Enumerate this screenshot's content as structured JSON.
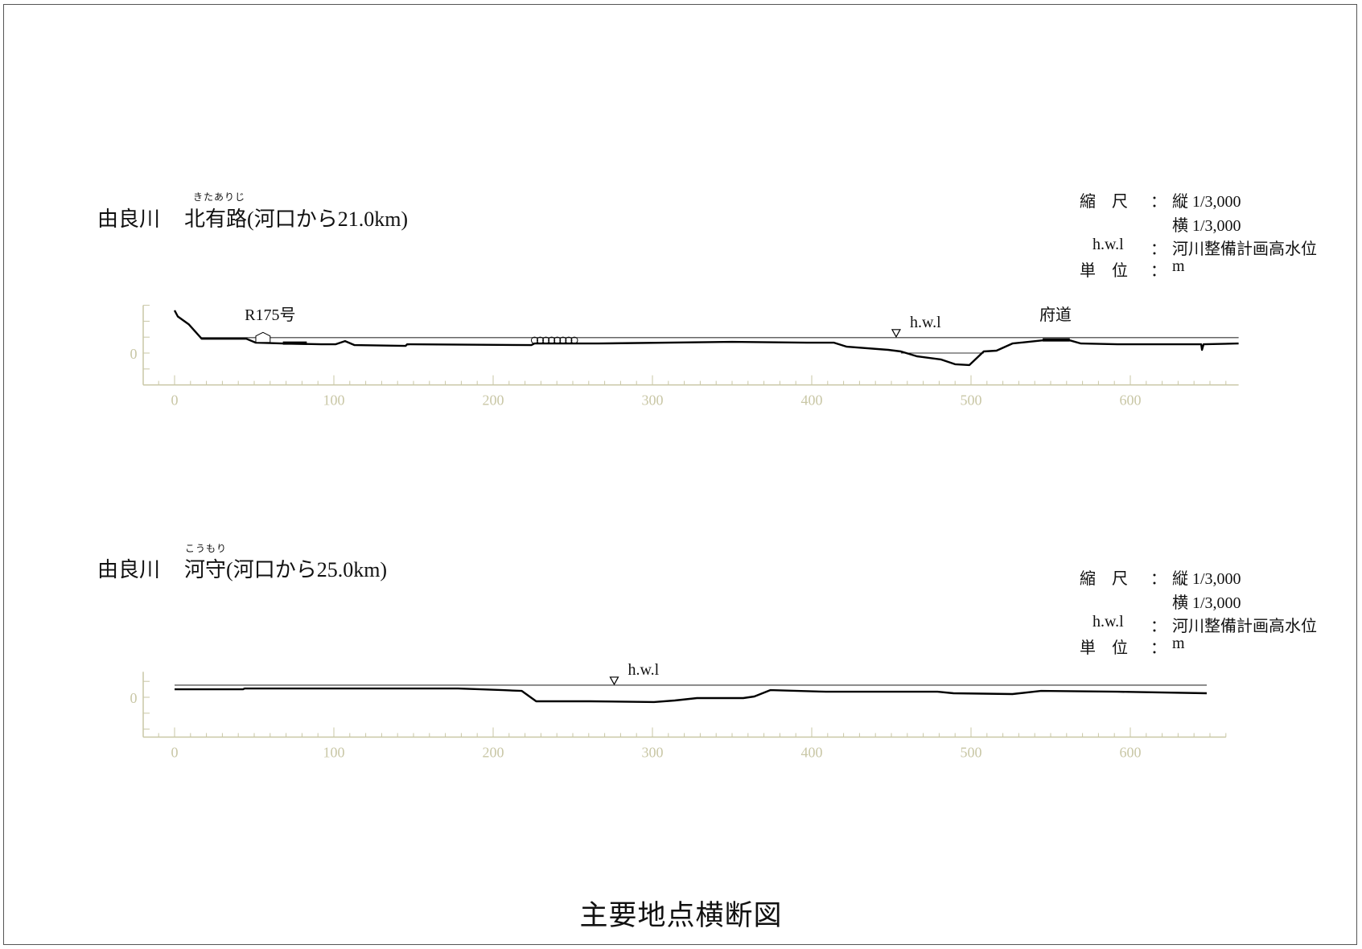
{
  "main_title": "主要地点横断図",
  "sections": [
    {
      "river": "由良川",
      "place": "北有路",
      "ruby": "きたありじ",
      "distance": "(河口から21.0km)",
      "legend": {
        "scale_label": "縮　尺",
        "sep": "：",
        "vertical": "縦 1/3,000",
        "horizontal": "横 1/3,000",
        "hwl_label": "h.w.l",
        "hwl_desc": "河川整備計画高水位",
        "unit_label": "単　位",
        "unit": "m"
      }
    },
    {
      "river": "由良川",
      "place": "河守",
      "ruby": "こうもり",
      "distance": "(河口から25.0km)",
      "legend": {
        "scale_label": "縮　尺",
        "sep": "：",
        "vertical": "縦 1/3,000",
        "horizontal": "横 1/3,000",
        "hwl_label": "h.w.l",
        "hwl_desc": "河川整備計画高水位",
        "unit_label": "単　位",
        "unit": "m"
      }
    }
  ],
  "colors": {
    "axis": "#c9c7a6",
    "profile": "#000000",
    "text": "#111111"
  },
  "chart_data": [
    {
      "type": "line",
      "xticks": [
        0,
        100,
        200,
        300,
        400,
        500,
        600
      ],
      "yticks_labeled": [
        0
      ],
      "xlim": [
        0,
        668
      ],
      "ylim": [
        -20,
        30
      ],
      "profile": [
        [
          0,
          26.8
        ],
        [
          2,
          23
        ],
        [
          9,
          18
        ],
        [
          17,
          9
        ],
        [
          45,
          9
        ],
        [
          51,
          6.5
        ],
        [
          68,
          6
        ],
        [
          92,
          5.5
        ],
        [
          101,
          5.5
        ],
        [
          107,
          7.5
        ],
        [
          113,
          5
        ],
        [
          145,
          4.5
        ],
        [
          146,
          5.5
        ],
        [
          224,
          5
        ],
        [
          226,
          6
        ],
        [
          266,
          6
        ],
        [
          350,
          7
        ],
        [
          397,
          6.5
        ],
        [
          414,
          6.5
        ],
        [
          422,
          4
        ],
        [
          448,
          2
        ],
        [
          456,
          1
        ],
        [
          466,
          -2
        ],
        [
          481,
          -4
        ],
        [
          490,
          -7
        ],
        [
          499,
          -7.5
        ],
        [
          508,
          1
        ],
        [
          516,
          1.5
        ],
        [
          526,
          6
        ],
        [
          545,
          8
        ],
        [
          562,
          8
        ],
        [
          569,
          6
        ],
        [
          592,
          5.5
        ],
        [
          607,
          5.5
        ],
        [
          644.5,
          5.5
        ],
        [
          645,
          2
        ],
        [
          646,
          5.5
        ],
        [
          668,
          6
        ]
      ],
      "hwl": {
        "elevation": 9.7,
        "from": 17,
        "to": 668,
        "marker_x": 453,
        "label": "h.w.l"
      },
      "water_line": {
        "elevation": 0,
        "from": 456,
        "to": 508
      },
      "annotations": [
        {
          "text": "R175号",
          "x": 60
        },
        {
          "text": "府道",
          "x": 553
        }
      ],
      "road_bars": [
        [
          68,
          83,
          6
        ],
        [
          545,
          562,
          8
        ]
      ],
      "house": {
        "from": 51,
        "to": 60,
        "top": 13
      },
      "circles": {
        "from": 226,
        "to": 251,
        "count": 8,
        "elevation": 8
      }
    },
    {
      "type": "line",
      "xticks": [
        0,
        100,
        200,
        300,
        400,
        500,
        600
      ],
      "yticks_labeled": [
        0
      ],
      "xlim": [
        0,
        660
      ],
      "ylim": [
        -25,
        16
      ],
      "profile": [
        [
          0,
          5
        ],
        [
          43,
          5
        ],
        [
          44,
          5.5
        ],
        [
          178,
          5.5
        ],
        [
          206,
          4.5
        ],
        [
          218,
          4
        ],
        [
          227,
          -2.5
        ],
        [
          261,
          -2.5
        ],
        [
          301,
          -3
        ],
        [
          314,
          -2
        ],
        [
          328,
          -0.5
        ],
        [
          357,
          -0.5
        ],
        [
          364,
          0.5
        ],
        [
          374,
          4.5
        ],
        [
          409,
          3.5
        ],
        [
          479,
          3.5
        ],
        [
          489,
          2.5
        ],
        [
          526,
          2
        ],
        [
          544,
          4
        ],
        [
          592,
          3.5
        ],
        [
          648,
          2.5
        ]
      ],
      "hwl": {
        "elevation": 7.6,
        "from": 0,
        "to": 648,
        "marker_x": 276,
        "label": "h.w.l"
      },
      "annotations": []
    }
  ]
}
